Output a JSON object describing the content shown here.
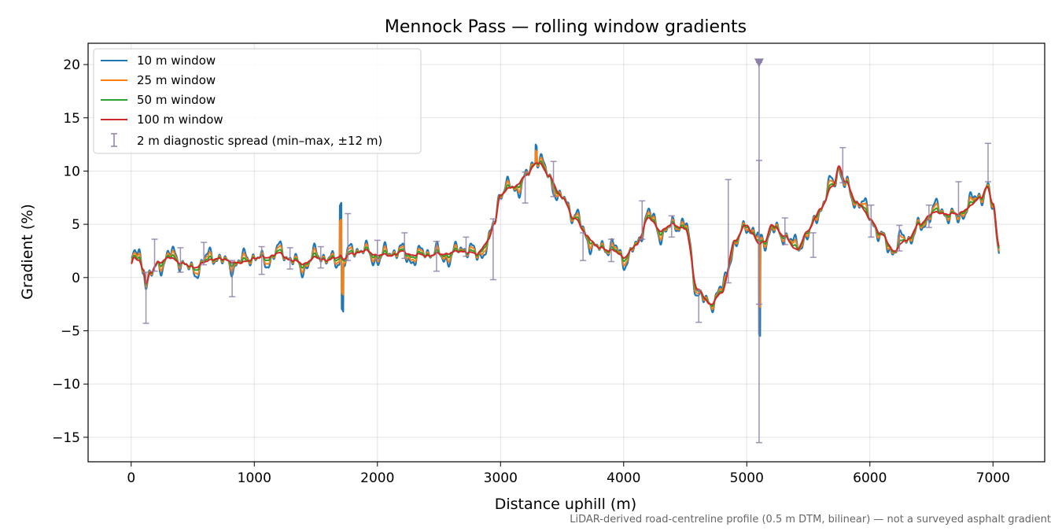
{
  "chart_data": {
    "type": "line",
    "title": "Mennock Pass — rolling window gradients",
    "xlabel": "Distance uphill (m)",
    "ylabel": "Gradient (%)",
    "footnote": "LiDAR-derived road-centreline profile (0.5 m DTM, bilinear) — not a surveyed asphalt gradient",
    "xlim": [
      -350,
      7420
    ],
    "ylim": [
      -17.3,
      22.0
    ],
    "xticks": [
      0,
      1000,
      2000,
      3000,
      4000,
      5000,
      6000,
      7000
    ],
    "xtick_labels": [
      "0",
      "1000",
      "2000",
      "3000",
      "4000",
      "5000",
      "6000",
      "7000"
    ],
    "yticks": [
      -15,
      -10,
      -5,
      0,
      5,
      10,
      15,
      20
    ],
    "ytick_labels": [
      "−15",
      "−10",
      "−5",
      "0",
      "5",
      "10",
      "15",
      "20"
    ],
    "grid": true,
    "legend_position": "top-left",
    "anchors": {
      "x": [
        0,
        20,
        60,
        100,
        120,
        160,
        220,
        300,
        400,
        500,
        600,
        700,
        800,
        900,
        1000,
        1100,
        1200,
        1300,
        1400,
        1500,
        1600,
        1680,
        1700,
        1720,
        1800,
        1900,
        2000,
        2100,
        2200,
        2300,
        2400,
        2500,
        2600,
        2700,
        2800,
        2900,
        2950,
        3000,
        3100,
        3200,
        3300,
        3400,
        3500,
        3600,
        3700,
        3800,
        3900,
        4000,
        4100,
        4200,
        4300,
        4400,
        4500,
        4600,
        4700,
        4800,
        4900,
        5000,
        5050,
        5100,
        5150,
        5200,
        5300,
        5400,
        5500,
        5600,
        5700,
        5750,
        5800,
        5900,
        6000,
        6100,
        6200,
        6300,
        6400,
        6500,
        6600,
        6700,
        6800,
        6900,
        6950,
        7000,
        7050
      ],
      "y": [
        1.2,
        1.8,
        1.5,
        0.8,
        -0.5,
        0.5,
        1.5,
        1.8,
        1.4,
        1.0,
        1.4,
        1.8,
        1.6,
        1.3,
        1.8,
        2.0,
        2.2,
        1.6,
        1.4,
        1.8,
        1.6,
        2.0,
        2.2,
        1.8,
        2.2,
        2.5,
        2.2,
        2.0,
        2.4,
        2.2,
        2.0,
        2.2,
        2.4,
        2.4,
        2.2,
        3.5,
        5.0,
        7.8,
        8.5,
        9.5,
        10.8,
        9.5,
        7.5,
        5.5,
        4.0,
        2.8,
        2.5,
        2.0,
        3.0,
        5.5,
        4.5,
        5.0,
        4.5,
        -1.0,
        -2.5,
        -1.5,
        3.5,
        5.0,
        4.0,
        3.0,
        3.5,
        5.0,
        4.0,
        2.5,
        4.5,
        6.5,
        8.5,
        10.5,
        9.0,
        7.0,
        5.5,
        4.0,
        2.5,
        3.5,
        5.0,
        6.0,
        6.0,
        6.0,
        6.5,
        7.5,
        8.5,
        7.0,
        3.0
      ]
    },
    "series": [
      {
        "name": "10 m window",
        "color": "#1f77b4",
        "noise_amplitude": 1.1
      },
      {
        "name": "25 m window",
        "color": "#ff7f0e",
        "noise_amplitude": 0.75
      },
      {
        "name": "50 m window",
        "color": "#2ca02c",
        "noise_amplitude": 0.4
      },
      {
        "name": "100 m window",
        "color": "#d62728",
        "noise_amplitude": 0.15
      }
    ],
    "spread_series": {
      "name": "2 m diagnostic spread (min–max, ±12 m)",
      "color": "#8e7fa8",
      "points": [
        {
          "x": 120,
          "low": -4.3,
          "high": 0.5
        },
        {
          "x": 190,
          "low": 0.6,
          "high": 3.6
        },
        {
          "x": 400,
          "low": 0.5,
          "high": 2.8
        },
        {
          "x": 590,
          "low": 1.2,
          "high": 3.3
        },
        {
          "x": 820,
          "low": -1.8,
          "high": 1.6
        },
        {
          "x": 1060,
          "low": 0.3,
          "high": 2.9
        },
        {
          "x": 1290,
          "low": 0.8,
          "high": 2.8
        },
        {
          "x": 1540,
          "low": 0.9,
          "high": 2.9
        },
        {
          "x": 1760,
          "low": 1.6,
          "high": 6.0
        },
        {
          "x": 2000,
          "low": 1.7,
          "high": 3.5
        },
        {
          "x": 2220,
          "low": 1.8,
          "high": 4.2
        },
        {
          "x": 2480,
          "low": 0.6,
          "high": 3.4
        },
        {
          "x": 2720,
          "low": 2.0,
          "high": 3.8
        },
        {
          "x": 2940,
          "low": -0.2,
          "high": 5.5
        },
        {
          "x": 3200,
          "low": 7.0,
          "high": 9.9
        },
        {
          "x": 3430,
          "low": 7.6,
          "high": 10.9
        },
        {
          "x": 3670,
          "low": 1.6,
          "high": 4.2
        },
        {
          "x": 3900,
          "low": 1.5,
          "high": 3.6
        },
        {
          "x": 4150,
          "low": 3.6,
          "high": 7.2
        },
        {
          "x": 4390,
          "low": 3.8,
          "high": 5.8
        },
        {
          "x": 4610,
          "low": -4.2,
          "high": -1.2
        },
        {
          "x": 4850,
          "low": -0.5,
          "high": 9.2
        },
        {
          "x": 5100,
          "low": -15.5,
          "high": 20.2
        },
        {
          "x": 5100,
          "low": -2.5,
          "high": 11.0
        },
        {
          "x": 5310,
          "low": 3.1,
          "high": 5.6
        },
        {
          "x": 5540,
          "low": 1.9,
          "high": 4.2
        },
        {
          "x": 5780,
          "low": 8.9,
          "high": 12.2
        },
        {
          "x": 6010,
          "low": 3.8,
          "high": 6.8
        },
        {
          "x": 6240,
          "low": 2.5,
          "high": 4.9
        },
        {
          "x": 6480,
          "low": 4.7,
          "high": 6.8
        },
        {
          "x": 6720,
          "low": 5.8,
          "high": 9.0
        },
        {
          "x": 6960,
          "low": 9.0,
          "high": 12.6
        }
      ]
    },
    "marker": {
      "x": 5100,
      "y": 20.2,
      "shape": "triangle-down",
      "color": "#8e7fa8"
    }
  }
}
